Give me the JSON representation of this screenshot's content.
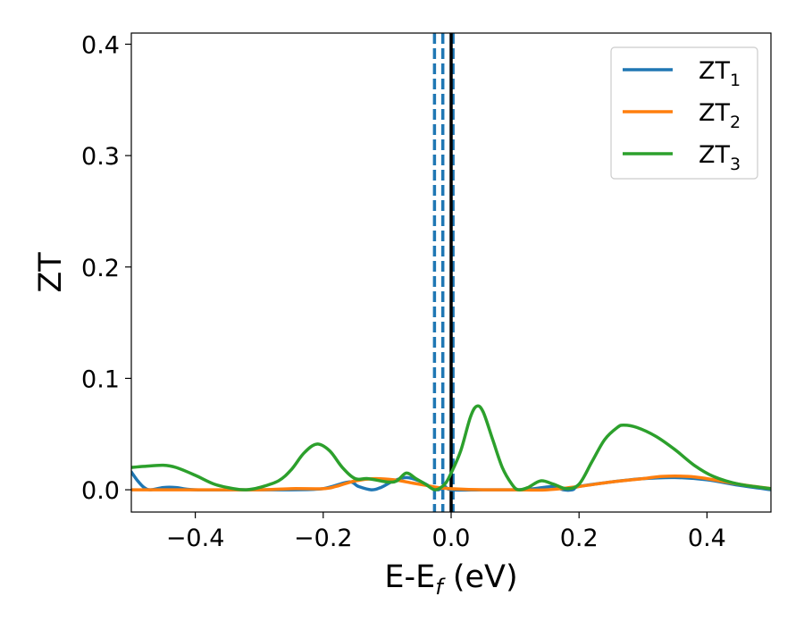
{
  "chart_data": {
    "type": "line",
    "title": "",
    "xlabel": "E-E",
    "xlabel_sub": "f",
    "xlabel_unit": " (eV)",
    "ylabel": "ZT",
    "xlim": [
      -0.5,
      0.5
    ],
    "ylim": [
      -0.02,
      0.41
    ],
    "xticks": [
      -0.4,
      -0.2,
      0.0,
      0.2,
      0.4
    ],
    "xtick_labels": [
      "−0.4",
      "−0.2",
      "0.0",
      "0.2",
      "0.4"
    ],
    "yticks": [
      0.0,
      0.1,
      0.2,
      0.3,
      0.4
    ],
    "ytick_labels": [
      "0.0",
      "0.1",
      "0.2",
      "0.3",
      "0.4"
    ],
    "grid": false,
    "legend_position": "top-right",
    "vertical_lines": [
      {
        "x": -0.026,
        "style": "dashed",
        "color": "#1f77b4"
      },
      {
        "x": -0.013,
        "style": "dashed",
        "color": "#1f77b4"
      },
      {
        "x": 0.003,
        "style": "dashed",
        "color": "#1f77b4"
      },
      {
        "x": 0.0,
        "style": "solid",
        "color": "#000000"
      }
    ],
    "series": [
      {
        "name": "ZT",
        "subscript": "1",
        "color": "#1f77b4",
        "points": [
          [
            -0.5,
            0.016
          ],
          [
            -0.49,
            0.008
          ],
          [
            -0.48,
            0.002
          ],
          [
            -0.47,
            0.0
          ],
          [
            -0.45,
            0.002
          ],
          [
            -0.43,
            0.002
          ],
          [
            -0.4,
            0.0
          ],
          [
            -0.3,
            0.0
          ],
          [
            -0.25,
            0.0
          ],
          [
            -0.2,
            0.001
          ],
          [
            -0.16,
            0.007
          ],
          [
            -0.145,
            0.003
          ],
          [
            -0.125,
            0.0
          ],
          [
            -0.11,
            0.002
          ],
          [
            -0.09,
            0.008
          ],
          [
            -0.07,
            0.011
          ],
          [
            -0.05,
            0.008
          ],
          [
            -0.03,
            0.002
          ],
          [
            -0.02,
            0.0
          ],
          [
            -0.01,
            0.003
          ],
          [
            0.0,
            0.0
          ],
          [
            0.05,
            0.0
          ],
          [
            0.1,
            0.0
          ],
          [
            0.13,
            0.001
          ],
          [
            0.16,
            0.003
          ],
          [
            0.175,
            0.0
          ],
          [
            0.19,
            0.0
          ],
          [
            0.2,
            0.003
          ],
          [
            0.25,
            0.007
          ],
          [
            0.3,
            0.01
          ],
          [
            0.35,
            0.011
          ],
          [
            0.4,
            0.009
          ],
          [
            0.45,
            0.004
          ],
          [
            0.5,
            0.0
          ]
        ]
      },
      {
        "name": "ZT",
        "subscript": "2",
        "color": "#ff7f0e",
        "points": [
          [
            -0.5,
            0.0
          ],
          [
            -0.4,
            0.0
          ],
          [
            -0.3,
            0.0
          ],
          [
            -0.25,
            0.001
          ],
          [
            -0.2,
            0.001
          ],
          [
            -0.18,
            0.003
          ],
          [
            -0.15,
            0.008
          ],
          [
            -0.12,
            0.01
          ],
          [
            -0.09,
            0.009
          ],
          [
            -0.06,
            0.006
          ],
          [
            -0.04,
            0.004
          ],
          [
            -0.02,
            0.002
          ],
          [
            0.0,
            0.001
          ],
          [
            0.05,
            0.0
          ],
          [
            0.1,
            0.0
          ],
          [
            0.15,
            0.0
          ],
          [
            0.2,
            0.003
          ],
          [
            0.25,
            0.007
          ],
          [
            0.3,
            0.01
          ],
          [
            0.33,
            0.012
          ],
          [
            0.37,
            0.012
          ],
          [
            0.4,
            0.01
          ],
          [
            0.45,
            0.005
          ],
          [
            0.5,
            0.001
          ]
        ]
      },
      {
        "name": "ZT",
        "subscript": "3",
        "color": "#2ca02c",
        "points": [
          [
            -0.5,
            0.02
          ],
          [
            -0.48,
            0.021
          ],
          [
            -0.45,
            0.022
          ],
          [
            -0.43,
            0.02
          ],
          [
            -0.4,
            0.013
          ],
          [
            -0.37,
            0.005
          ],
          [
            -0.34,
            0.001
          ],
          [
            -0.32,
            0.0
          ],
          [
            -0.3,
            0.002
          ],
          [
            -0.27,
            0.008
          ],
          [
            -0.25,
            0.018
          ],
          [
            -0.23,
            0.033
          ],
          [
            -0.21,
            0.041
          ],
          [
            -0.19,
            0.035
          ],
          [
            -0.17,
            0.02
          ],
          [
            -0.15,
            0.01
          ],
          [
            -0.13,
            0.01
          ],
          [
            -0.1,
            0.007
          ],
          [
            -0.085,
            0.008
          ],
          [
            -0.07,
            0.015
          ],
          [
            -0.055,
            0.01
          ],
          [
            -0.04,
            0.005
          ],
          [
            -0.025,
            0.0
          ],
          [
            -0.01,
            0.005
          ],
          [
            0.0,
            0.015
          ],
          [
            0.015,
            0.035
          ],
          [
            0.03,
            0.065
          ],
          [
            0.04,
            0.075
          ],
          [
            0.05,
            0.07
          ],
          [
            0.065,
            0.045
          ],
          [
            0.08,
            0.02
          ],
          [
            0.095,
            0.005
          ],
          [
            0.105,
            0.0
          ],
          [
            0.12,
            0.002
          ],
          [
            0.14,
            0.008
          ],
          [
            0.16,
            0.005
          ],
          [
            0.18,
            0.001
          ],
          [
            0.2,
            0.005
          ],
          [
            0.22,
            0.025
          ],
          [
            0.24,
            0.045
          ],
          [
            0.26,
            0.056
          ],
          [
            0.27,
            0.058
          ],
          [
            0.29,
            0.056
          ],
          [
            0.32,
            0.048
          ],
          [
            0.35,
            0.036
          ],
          [
            0.38,
            0.022
          ],
          [
            0.41,
            0.012
          ],
          [
            0.45,
            0.005
          ],
          [
            0.5,
            0.001
          ]
        ]
      }
    ]
  }
}
